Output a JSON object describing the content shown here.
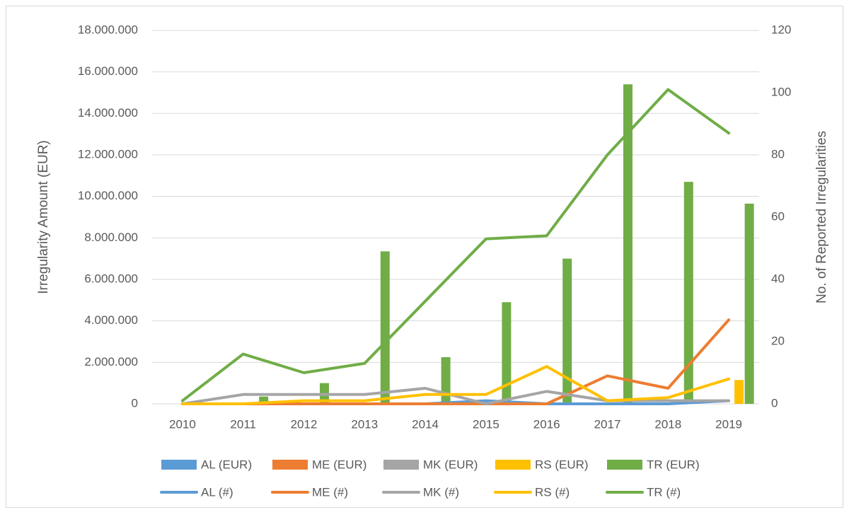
{
  "chart_data": {
    "type": "bar",
    "y_label": "Irregularity Amount (EUR)",
    "y2_label": "No. of Reported Irregularities",
    "categories": [
      "2010",
      "2011",
      "2012",
      "2013",
      "2014",
      "2015",
      "2016",
      "2017",
      "2018",
      "2019"
    ],
    "ylim": [
      0,
      18000000
    ],
    "yticks": [
      0,
      {
        "value": 2000000,
        "label": "2.000.000"
      },
      {
        "value": 4000000,
        "label": "4.000.000"
      },
      {
        "value": 6000000,
        "label": "6.000.000"
      },
      {
        "value": 8000000,
        "label": "8.000.000"
      },
      {
        "value": 10000000,
        "label": "10.000.000"
      },
      {
        "value": 12000000,
        "label": "12.000.000"
      },
      {
        "value": 14000000,
        "label": "14.000.000"
      },
      {
        "value": 16000000,
        "label": "16.000.000"
      },
      {
        "value": 18000000,
        "label": "18.000.000"
      }
    ],
    "y2lim": [
      0,
      120
    ],
    "y2ticks": [
      0,
      20,
      40,
      60,
      80,
      100,
      120
    ],
    "grid": true,
    "legend": "bottom",
    "series": [
      {
        "name": "AL (EUR)",
        "type": "bar",
        "color": "#5b9bd5",
        "values": [
          0,
          0,
          0,
          0,
          0,
          0,
          0,
          0,
          0,
          0
        ]
      },
      {
        "name": "ME (EUR)",
        "type": "bar",
        "color": "#ed7d31",
        "values": [
          0,
          0,
          0,
          0,
          0,
          0,
          0,
          0,
          0,
          0
        ]
      },
      {
        "name": "MK (EUR)",
        "type": "bar",
        "color": "#a5a5a5",
        "values": [
          0,
          0,
          0,
          0,
          0,
          0,
          0,
          0,
          0,
          0
        ]
      },
      {
        "name": "RS (EUR)",
        "type": "bar",
        "color": "#ffc000",
        "values": [
          0,
          0,
          0,
          0,
          0,
          0,
          0,
          0,
          0,
          1150000
        ]
      },
      {
        "name": "TR (EUR)",
        "type": "bar",
        "color": "#70ad47",
        "values": [
          0,
          350000,
          1000000,
          7350000,
          2250000,
          4900000,
          7000000,
          15400000,
          10700000,
          9650000
        ]
      },
      {
        "name": "AL (#)",
        "type": "line",
        "axis": "y2",
        "color": "#5b9bd5",
        "values": [
          0,
          0,
          0,
          0,
          0,
          1,
          0,
          0,
          0,
          1
        ]
      },
      {
        "name": "ME (#)",
        "type": "line",
        "axis": "y2",
        "color": "#ed7d31",
        "values": [
          0,
          0,
          0,
          0,
          0,
          0,
          0,
          9,
          5,
          27
        ]
      },
      {
        "name": "MK (#)",
        "type": "line",
        "axis": "y2",
        "color": "#a5a5a5",
        "values": [
          0,
          3,
          3,
          3,
          5,
          0,
          4,
          1,
          1,
          1
        ]
      },
      {
        "name": "RS (#)",
        "type": "line",
        "axis": "y2",
        "color": "#ffc000",
        "values": [
          0,
          0,
          1,
          1,
          3,
          3,
          12,
          1,
          2,
          8
        ]
      },
      {
        "name": "TR (#)",
        "type": "line",
        "axis": "y2",
        "color": "#70ad47",
        "values": [
          1,
          16,
          10,
          13,
          33,
          53,
          54,
          80,
          101,
          87
        ]
      }
    ]
  }
}
